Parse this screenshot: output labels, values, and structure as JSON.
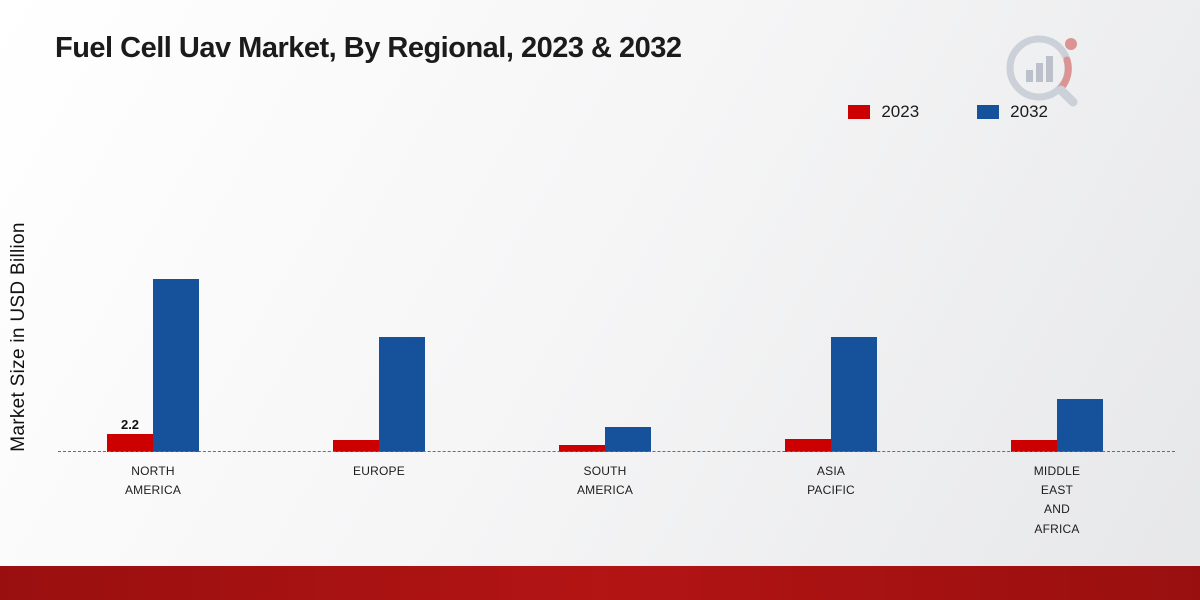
{
  "title": "Fuel Cell Uav Market, By Regional, 2023 & 2032",
  "y_axis_label": "Market Size in USD Billion",
  "legend": [
    {
      "label": "2023",
      "color": "#cc0000"
    },
    {
      "label": "2032",
      "color": "#16529b"
    }
  ],
  "logo_icon": "market-research-gauge-logo",
  "chart_data": {
    "type": "bar",
    "title": "Fuel Cell Uav Market, By Regional, 2023 & 2032",
    "xlabel": "",
    "ylabel": "Market Size in USD Billion",
    "categories": [
      "NORTH\nAMERICA",
      "EUROPE",
      "SOUTH\nAMERICA",
      "ASIA\nPACIFIC",
      "MIDDLE\nEAST\nAND\nAFRICA"
    ],
    "series": [
      {
        "name": "2023",
        "color": "#cc0000",
        "values": [
          2.2,
          1.4,
          0.9,
          1.6,
          1.4
        ],
        "labels": [
          "2.2",
          "",
          "",
          "",
          ""
        ]
      },
      {
        "name": "2032",
        "color": "#16529b",
        "values": [
          21.0,
          14.0,
          3.0,
          14.0,
          6.5
        ],
        "labels": [
          "",
          "",
          "",
          "",
          ""
        ]
      }
    ],
    "ylim": [
      0,
      22
    ],
    "grid": false,
    "legend_position": "top-right",
    "baseline_style": "dashed"
  }
}
